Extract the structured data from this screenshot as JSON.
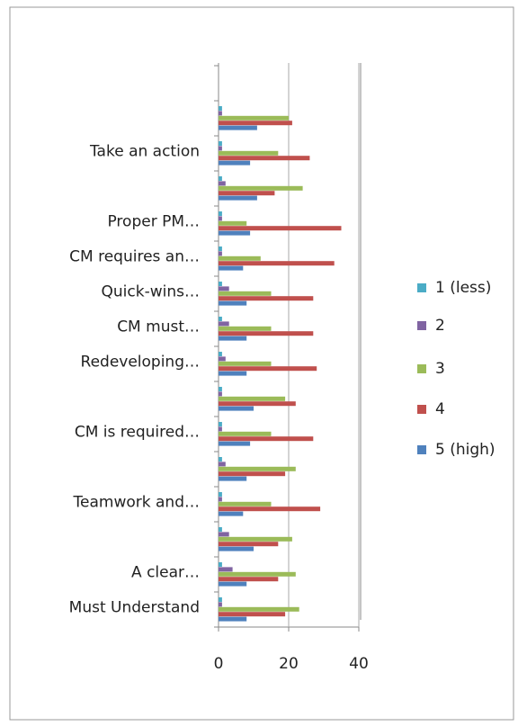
{
  "chart_data": {
    "type": "bar",
    "orientation": "horizontal",
    "categories": [
      "Must Understand",
      "A clear…",
      null,
      "Teamwork and…",
      null,
      "CM is required…",
      null,
      "Redeveloping…",
      "CM must…",
      "Quick-wins…",
      "CM requires an…",
      "Proper PM…",
      null,
      "Take an action",
      null
    ],
    "series": [
      {
        "name": "5 (high)",
        "color": "#4f81bd",
        "values": [
          8,
          8,
          10,
          7,
          8,
          9,
          10,
          8,
          8,
          8,
          7,
          9,
          11,
          9,
          11
        ]
      },
      {
        "name": "4",
        "color": "#c0504d",
        "values": [
          19,
          17,
          17,
          29,
          19,
          27,
          22,
          28,
          27,
          27,
          33,
          35,
          16,
          26,
          21
        ]
      },
      {
        "name": "3",
        "color": "#9bbb59",
        "values": [
          23,
          22,
          21,
          15,
          22,
          15,
          19,
          15,
          15,
          15,
          12,
          8,
          24,
          17,
          20
        ]
      },
      {
        "name": "2",
        "color": "#8064a2",
        "values": [
          1,
          4,
          3,
          1,
          2,
          1,
          1,
          2,
          3,
          3,
          1,
          1,
          2,
          1,
          1
        ]
      },
      {
        "name": "1 (less)",
        "color": "#4bacc6",
        "values": [
          1,
          1,
          1,
          1,
          1,
          1,
          1,
          1,
          1,
          1,
          1,
          1,
          1,
          1,
          1
        ]
      }
    ],
    "xlim": [
      0,
      40
    ],
    "xticks": [
      0,
      20,
      40
    ],
    "grid": true,
    "legend": "right"
  }
}
